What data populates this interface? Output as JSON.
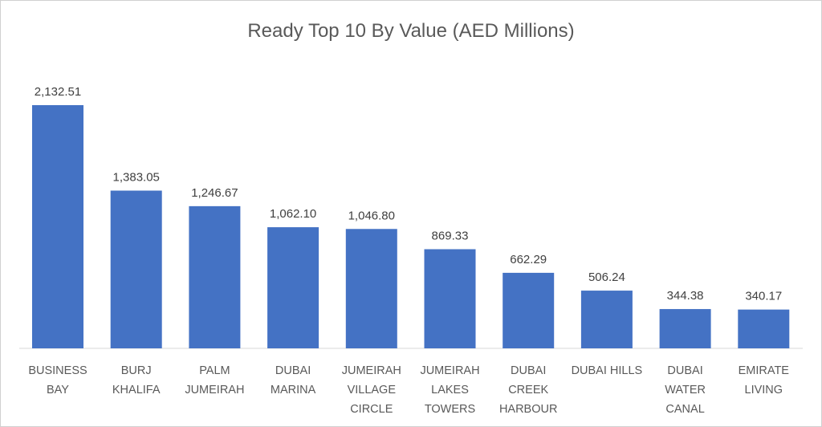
{
  "chart_data": {
    "type": "bar",
    "title": "Ready Top 10 By Value (AED Millions)",
    "xlabel": "",
    "ylabel": "",
    "ylim": [
      0,
      2132.51
    ],
    "grid": false,
    "bar_color": "#4472C4",
    "categories": [
      [
        "BUSINESS",
        "BAY"
      ],
      [
        "BURJ",
        "KHALIFA"
      ],
      [
        "PALM",
        "JUMEIRAH"
      ],
      [
        "DUBAI",
        "MARINA"
      ],
      [
        "JUMEIRAH",
        "VILLAGE",
        "CIRCLE"
      ],
      [
        "JUMEIRAH",
        "LAKES",
        "TOWERS"
      ],
      [
        "DUBAI",
        "CREEK",
        "HARBOUR"
      ],
      [
        "DUBAI HILLS"
      ],
      [
        "DUBAI",
        "WATER",
        "CANAL"
      ],
      [
        "EMIRATE",
        "LIVING"
      ]
    ],
    "values": [
      2132.51,
      1383.05,
      1246.67,
      1062.1,
      1046.8,
      869.33,
      662.29,
      506.24,
      344.38,
      340.17
    ],
    "data_labels": [
      "2,132.51",
      "1,383.05",
      "1,246.67",
      "1,062.10",
      "1,046.80",
      "869.33",
      "662.29",
      "506.24",
      "344.38",
      "340.17"
    ]
  }
}
